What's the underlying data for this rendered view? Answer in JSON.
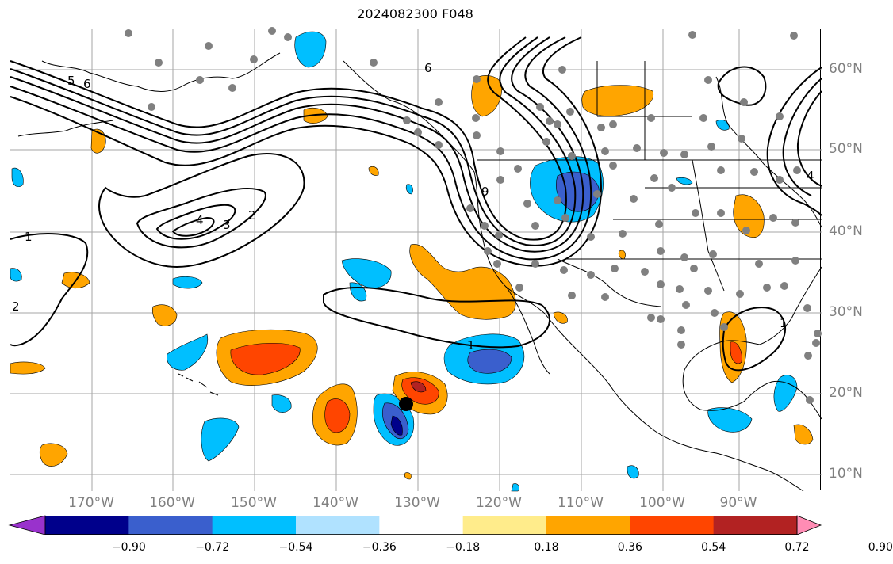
{
  "title": "2024082300 F048",
  "lon_labels": [
    "170°W",
    "160°W",
    "150°W",
    "140°W",
    "130°W",
    "120°W",
    "110°W",
    "100°W",
    "90°W"
  ],
  "lat_labels": [
    "60°N",
    "50°N",
    "40°N",
    "30°N",
    "20°N",
    "10°N"
  ],
  "colorbar": {
    "ticks": [
      "−0.90",
      "−0.72",
      "−0.54",
      "−0.36",
      "−0.18",
      "0.18",
      "0.36",
      "0.54",
      "0.72",
      "0.90"
    ],
    "colors": [
      "#9932cc",
      "#00008b",
      "#3a5fcd",
      "#00bfff",
      "#b0e2ff",
      "#ffffff",
      "#ffec8b",
      "#ffa500",
      "#ff4500",
      "#b22222",
      "#ff8cb4"
    ]
  },
  "contour_labels": [
    "1",
    "2",
    "3",
    "4",
    "5",
    "6",
    "9",
    "1",
    "1",
    "2",
    "6",
    "4"
  ],
  "colors": {
    "grid": "#a6a6a6",
    "coast": "#000000",
    "station": "#808080",
    "contour": "#000000"
  }
}
